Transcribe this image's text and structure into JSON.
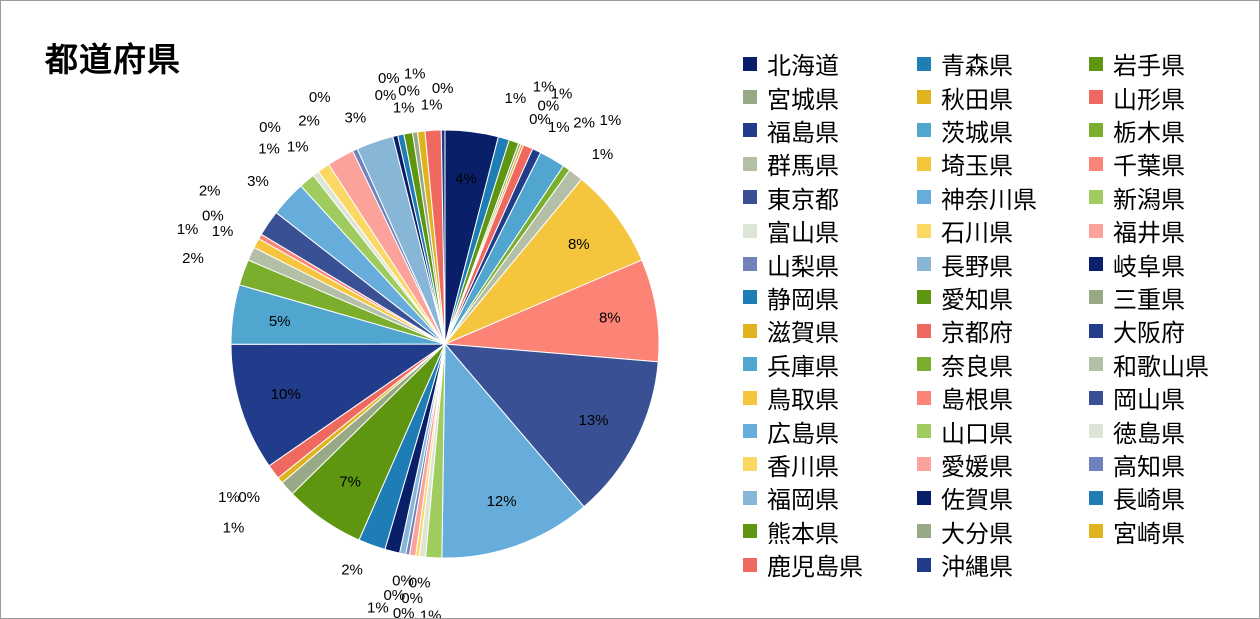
{
  "chart_data": {
    "type": "pie",
    "title": "都道府県",
    "legend_position": "right",
    "categories": [
      "北海道",
      "青森県",
      "岩手県",
      "宮城県",
      "秋田県",
      "山形県",
      "福島県",
      "茨城県",
      "栃木県",
      "群馬県",
      "埼玉県",
      "千葉県",
      "東京都",
      "神奈川県",
      "新潟県",
      "富山県",
      "石川県",
      "福井県",
      "山梨県",
      "長野県",
      "岐阜県",
      "静岡県",
      "愛知県",
      "三重県",
      "滋賀県",
      "京都府",
      "大阪府",
      "兵庫県",
      "奈良県",
      "和歌山県",
      "鳥取県",
      "島根県",
      "岡山県",
      "広島県",
      "山口県",
      "徳島県",
      "香川県",
      "愛媛県",
      "高知県",
      "福岡県",
      "佐賀県",
      "長崎県",
      "熊本県",
      "大分県",
      "宮崎県",
      "鹿児島県",
      "沖縄県"
    ],
    "values": [
      4.3,
      0.9,
      0.8,
      0.2,
      0.2,
      0.8,
      0.7,
      2.1,
      0.6,
      1.2,
      8.1,
      8.3,
      13.3,
      12.3,
      1.3,
      0.5,
      0.3,
      0.5,
      0.3,
      0.5,
      1.2,
      2.2,
      6.5,
      1.2,
      0.5,
      1.2,
      10.3,
      4.8,
      2.1,
      1.1,
      0.8,
      0.4,
      2.1,
      2.9,
      1.3,
      0.5,
      1.0,
      2.2,
      0.4,
      3.0,
      0.4,
      0.5,
      0.7,
      0.4,
      0.6,
      1.3,
      0.3
    ],
    "labels": [
      "4%",
      "1%",
      "1%",
      "0%",
      "0%",
      "1%",
      "1%",
      "2%",
      "1%",
      "1%",
      "8%",
      "8%",
      "13%",
      "12%",
      "1%",
      "0%",
      "0%",
      "0%",
      "0%",
      "0%",
      "1%",
      "2%",
      "7%",
      "1%",
      "0%",
      "1%",
      "10%",
      "5%",
      "2%",
      "1%",
      "1%",
      "0%",
      "2%",
      "3%",
      "1%",
      "0%",
      "1%",
      "2%",
      "0%",
      "3%",
      "0%",
      "0%",
      "1%",
      "0%",
      "1%",
      "1%",
      "0%"
    ],
    "colors": [
      "#0a1f6a",
      "#1f7db5",
      "#5e9612",
      "#98a986",
      "#e0b21e",
      "#f06961",
      "#203c8a",
      "#50a6cf",
      "#7cae2e",
      "#b3bfa6",
      "#f5c53d",
      "#fb8477",
      "#3a5095",
      "#67addb",
      "#a0cb5e",
      "#dde5d7",
      "#fad863",
      "#fba39b",
      "#7081bc",
      "#88b6d6",
      "#0a1f6a",
      "#1f7db5",
      "#5e9612",
      "#98a986",
      "#e0b21e",
      "#f06961",
      "#203c8a",
      "#50a6cf",
      "#7cae2e",
      "#b3bfa6",
      "#f5c53d",
      "#fb8477",
      "#3a5095",
      "#67addb",
      "#a0cb5e",
      "#dde5d7",
      "#fad863",
      "#fba39b",
      "#7081bc",
      "#88b6d6",
      "#0a1f6a",
      "#1f7db5",
      "#5e9612",
      "#98a986",
      "#e0b21e",
      "#f06961",
      "#203c8a"
    ]
  }
}
